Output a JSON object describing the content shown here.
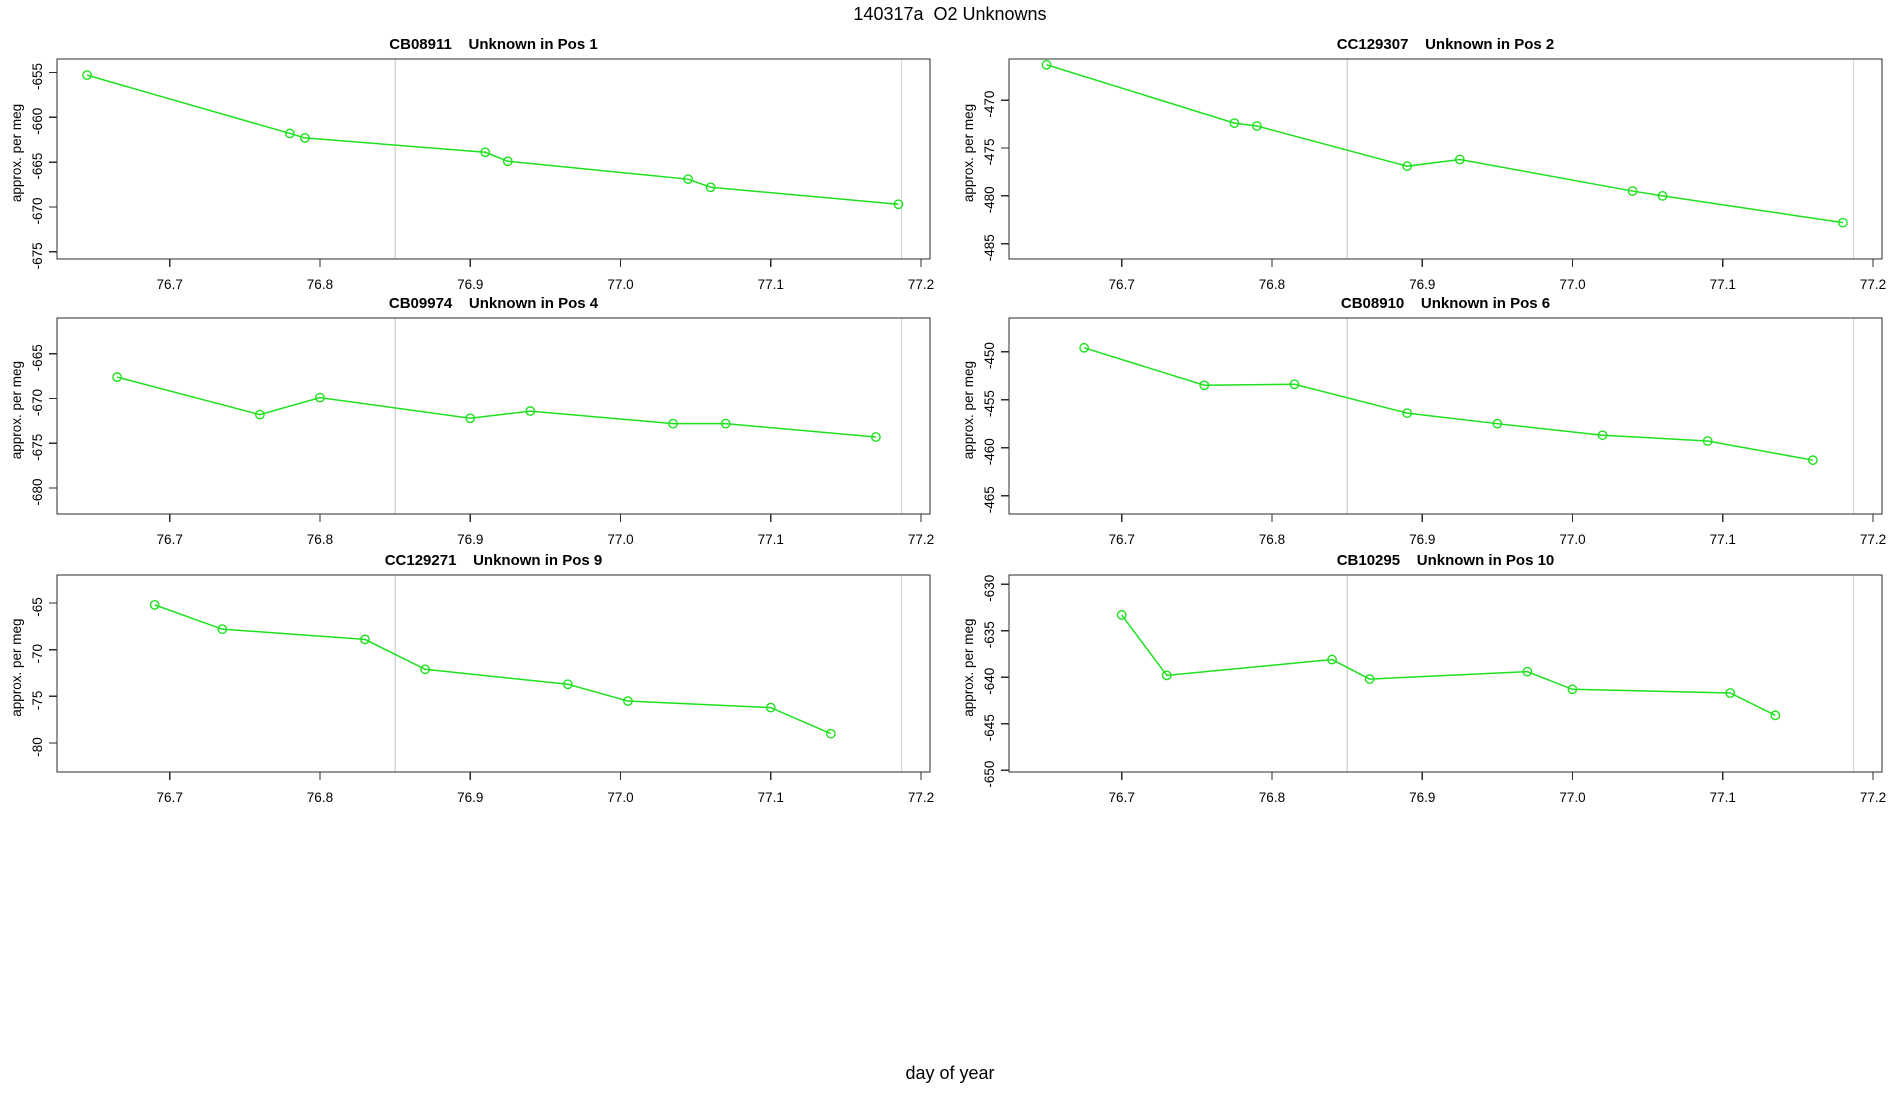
{
  "header": {
    "title": "140317a  O2 Unknowns"
  },
  "footer": {
    "x_axis_label": "day of year"
  },
  "colors": {
    "line_green": "#1ee11e",
    "grid_gray": "#d4d4d4",
    "axis_dark": "#2b2b2b",
    "text_black": "#000000",
    "background": "#ffffff"
  },
  "axis": {
    "xlim": [
      76.625,
      77.206
    ],
    "x_ticks": [
      "76.7",
      "76.8",
      "76.9",
      "77.0",
      "77.1",
      "77.2"
    ],
    "vlines": [
      76.85,
      77.187
    ],
    "grid": "vertical-reference-lines-only"
  },
  "chart_data": [
    {
      "type": "line",
      "sample_id": "CB08911",
      "subtitle": "Unknown in Pos 1",
      "ylabel": "approx. per meg",
      "ylim": [
        -675.8,
        -653.5
      ],
      "y_ticks": [
        "-675",
        "-670",
        "-665",
        "-660",
        "-655"
      ],
      "x": [
        76.645,
        76.78,
        76.79,
        76.91,
        76.925,
        77.045,
        77.06,
        77.185
      ],
      "y": [
        -655.3,
        -661.8,
        -662.3,
        -663.9,
        -664.9,
        -666.9,
        -667.8,
        -669.7
      ]
    },
    {
      "type": "line",
      "sample_id": "CC129307",
      "subtitle": "Unknown in Pos 2",
      "ylabel": "approx. per meg",
      "ylim": [
        -486.6,
        -465.7
      ],
      "y_ticks": [
        "-485",
        "-480",
        "-475",
        "-470"
      ],
      "x": [
        76.65,
        76.775,
        76.79,
        76.89,
        76.925,
        77.04,
        77.06,
        77.18
      ],
      "y": [
        -466.3,
        -472.4,
        -472.7,
        -476.9,
        -476.2,
        -479.5,
        -480.0,
        -482.8
      ]
    },
    {
      "type": "line",
      "sample_id": "CB09974",
      "subtitle": "Unknown in Pos 4",
      "ylabel": "approx. per meg",
      "ylim": [
        -682.9,
        -661.0
      ],
      "y_ticks": [
        "-680",
        "-675",
        "-670",
        "-665"
      ],
      "x": [
        76.665,
        76.76,
        76.8,
        76.9,
        76.94,
        77.035,
        77.07,
        77.17
      ],
      "y": [
        -667.6,
        -671.8,
        -669.9,
        -672.2,
        -671.4,
        -672.8,
        -672.8,
        -674.3
      ]
    },
    {
      "type": "line",
      "sample_id": "CB08910",
      "subtitle": "Unknown in Pos 6",
      "ylabel": "approx. per meg",
      "ylim": [
        -466.9,
        -446.5
      ],
      "y_ticks": [
        "-465",
        "-460",
        "-455",
        "-450"
      ],
      "x": [
        76.675,
        76.755,
        76.815,
        76.89,
        76.95,
        77.02,
        77.09,
        77.16
      ],
      "y": [
        -449.6,
        -453.5,
        -453.4,
        -456.4,
        -457.5,
        -458.7,
        -459.3,
        -461.3
      ]
    },
    {
      "type": "line",
      "sample_id": "CC129271",
      "subtitle": "Unknown in Pos 9",
      "ylabel": "approx. per meg",
      "ylim": [
        -83.1,
        -62.0
      ],
      "y_ticks": [
        "-80",
        "-75",
        "-70",
        "-65"
      ],
      "x": [
        76.69,
        76.735,
        76.83,
        76.87,
        76.965,
        77.005,
        77.1,
        77.14
      ],
      "y": [
        -65.2,
        -67.8,
        -68.9,
        -72.1,
        -73.7,
        -75.5,
        -76.2,
        -79.0
      ]
    },
    {
      "type": "line",
      "sample_id": "CB10295",
      "subtitle": "Unknown in Pos 10",
      "ylabel": "approx. per meg",
      "ylim": [
        -650.2,
        -629.0
      ],
      "y_ticks": [
        "-650",
        "-645",
        "-640",
        "-635",
        "-630"
      ],
      "x": [
        76.7,
        76.73,
        76.84,
        76.865,
        76.97,
        77.0,
        77.105,
        77.135
      ],
      "y": [
        -633.3,
        -639.8,
        -638.1,
        -640.2,
        -639.4,
        -641.3,
        -641.7,
        -644.1
      ]
    }
  ]
}
